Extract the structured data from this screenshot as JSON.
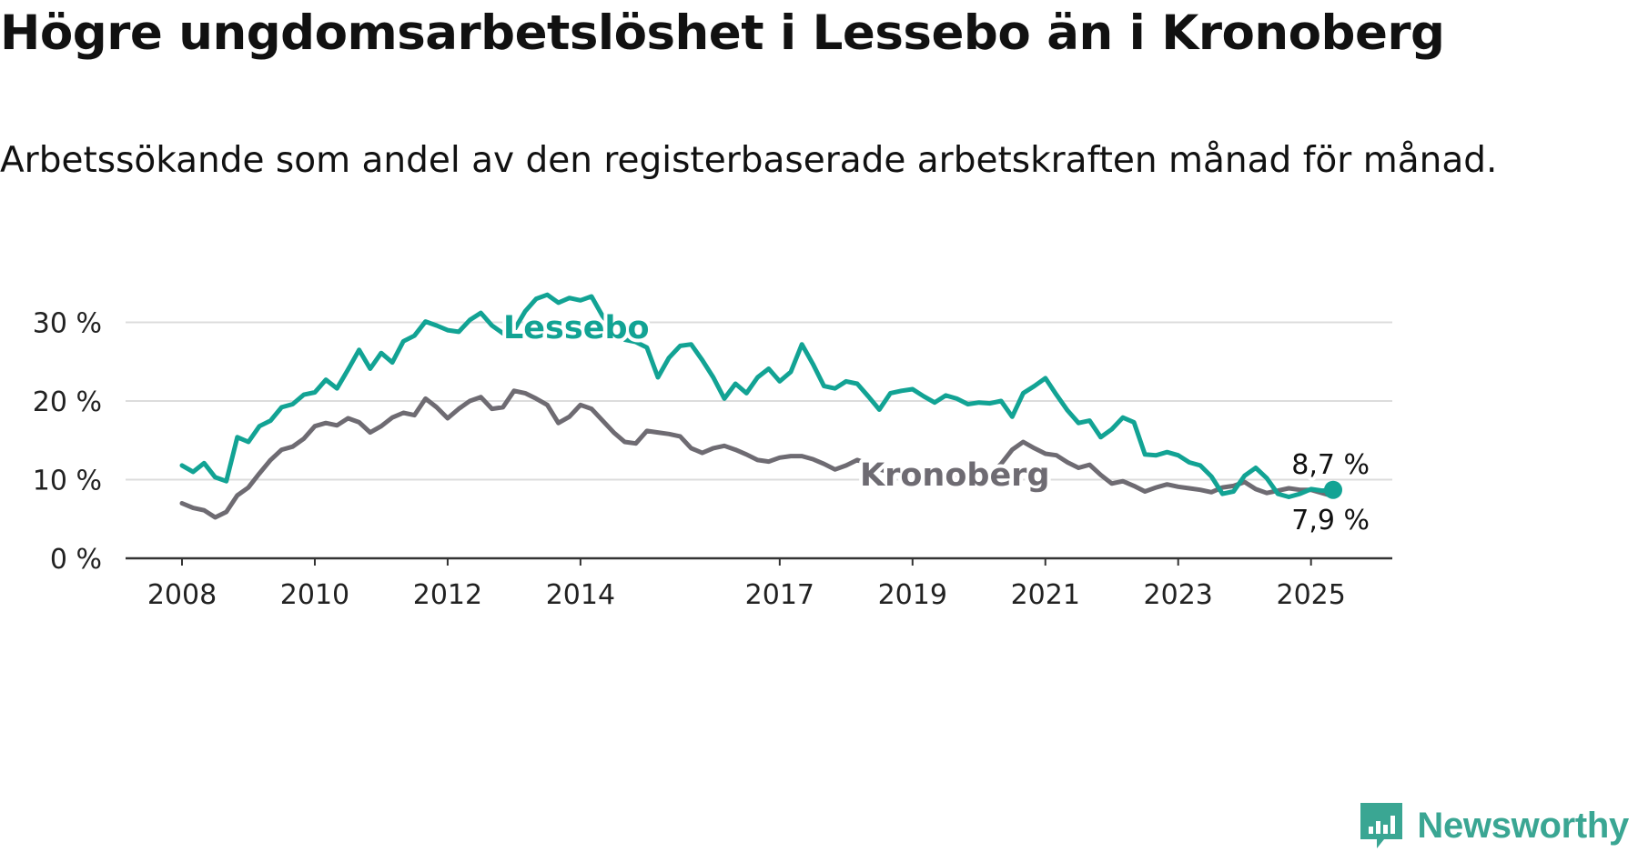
{
  "header": {
    "title": "Högre ungdomsarbetslöshet i Lessebo än i Kronoberg",
    "subtitle": "Arbetssökande som andel av den registerbaserade arbetskraften månad för månad."
  },
  "brand": {
    "name": "Newsworthy",
    "icon": "newsworthy-logo-icon",
    "color": "#3aa693"
  },
  "chart_data": {
    "type": "line",
    "title": "Högre ungdomsarbetslöshet i Lessebo än i Kronoberg",
    "subtitle": "Arbetssökande som andel av den registerbaserade arbetskraften månad för månad.",
    "xlabel": "",
    "ylabel": "",
    "x_ticks": [
      "2008",
      "2010",
      "2012",
      "2014",
      "2017",
      "2019",
      "2021",
      "2023",
      "2025"
    ],
    "y_ticks": [
      "0 %",
      "10 %",
      "20 %",
      "30 %"
    ],
    "ylim": [
      0,
      35
    ],
    "grid": true,
    "legend": "inline labels",
    "series": [
      {
        "name": "Lessebo",
        "color": "#12a394",
        "x": [
          "2008-01",
          "2008-03",
          "2008-05",
          "2008-07",
          "2008-09",
          "2008-11",
          "2009-01",
          "2009-03",
          "2009-05",
          "2009-07",
          "2009-09",
          "2009-11",
          "2010-01",
          "2010-03",
          "2010-05",
          "2010-07",
          "2010-09",
          "2010-11",
          "2011-01",
          "2011-03",
          "2011-05",
          "2011-07",
          "2011-09",
          "2011-11",
          "2012-01",
          "2012-03",
          "2012-05",
          "2012-07",
          "2012-09",
          "2012-11",
          "2013-01",
          "2013-03",
          "2013-05",
          "2013-07",
          "2013-09",
          "2013-11",
          "2014-01",
          "2014-03",
          "2014-05",
          "2014-07",
          "2014-09",
          "2014-11",
          "2015-01",
          "2015-03",
          "2015-05",
          "2015-07",
          "2015-09",
          "2015-11",
          "2016-01",
          "2016-03",
          "2016-05",
          "2016-07",
          "2016-09",
          "2016-11",
          "2017-01",
          "2017-03",
          "2017-05",
          "2017-07",
          "2017-09",
          "2017-11",
          "2018-01",
          "2018-03",
          "2018-05",
          "2018-07",
          "2018-09",
          "2018-11",
          "2019-01",
          "2019-03",
          "2019-05",
          "2019-07",
          "2019-09",
          "2019-11",
          "2020-01",
          "2020-03",
          "2020-05",
          "2020-07",
          "2020-09",
          "2020-11",
          "2021-01",
          "2021-03",
          "2021-05",
          "2021-07",
          "2021-09",
          "2021-11",
          "2022-01",
          "2022-03",
          "2022-05",
          "2022-07",
          "2022-09",
          "2022-11",
          "2023-01",
          "2023-03",
          "2023-05",
          "2023-07",
          "2023-09",
          "2023-11",
          "2024-01",
          "2024-03",
          "2024-05",
          "2024-07",
          "2024-09",
          "2024-11",
          "2025-01",
          "2025-03",
          "2025-05"
        ],
        "values": [
          11.8,
          11.0,
          12.1,
          10.3,
          9.8,
          15.4,
          14.8,
          16.8,
          17.5,
          19.2,
          19.6,
          20.8,
          21.1,
          22.7,
          21.6,
          24.0,
          26.5,
          24.1,
          26.1,
          24.9,
          27.6,
          28.3,
          30.1,
          29.6,
          29.0,
          28.8,
          30.3,
          31.2,
          29.6,
          28.6,
          29.0,
          31.4,
          33.0,
          33.5,
          32.5,
          33.1,
          32.8,
          33.3,
          30.8,
          29.0,
          27.8,
          27.5,
          26.8,
          23.0,
          25.5,
          27.0,
          27.2,
          25.2,
          23.0,
          20.3,
          22.2,
          21.0,
          23.0,
          24.1,
          22.5,
          23.7,
          27.2,
          24.7,
          21.9,
          21.6,
          22.5,
          22.2,
          20.6,
          18.9,
          21.0,
          21.3,
          21.5,
          20.6,
          19.8,
          20.7,
          20.3,
          19.6,
          19.8,
          19.7,
          20.0,
          18.0,
          21.0,
          21.9,
          22.9,
          20.8,
          18.8,
          17.2,
          17.5,
          15.4,
          16.4,
          17.9,
          17.3,
          13.2,
          13.1,
          13.5,
          13.1,
          12.2,
          11.8,
          10.4,
          8.2,
          8.5,
          10.5,
          11.5,
          10.2,
          8.2,
          7.8,
          8.2,
          8.8,
          8.6,
          8.7
        ]
      },
      {
        "name": "Kronoberg",
        "color": "#6e6b72",
        "x": [
          "2008-01",
          "2008-03",
          "2008-05",
          "2008-07",
          "2008-09",
          "2008-11",
          "2009-01",
          "2009-03",
          "2009-05",
          "2009-07",
          "2009-09",
          "2009-11",
          "2010-01",
          "2010-03",
          "2010-05",
          "2010-07",
          "2010-09",
          "2010-11",
          "2011-01",
          "2011-03",
          "2011-05",
          "2011-07",
          "2011-09",
          "2011-11",
          "2012-01",
          "2012-03",
          "2012-05",
          "2012-07",
          "2012-09",
          "2012-11",
          "2013-01",
          "2013-03",
          "2013-05",
          "2013-07",
          "2013-09",
          "2013-11",
          "2014-01",
          "2014-03",
          "2014-05",
          "2014-07",
          "2014-09",
          "2014-11",
          "2015-01",
          "2015-03",
          "2015-05",
          "2015-07",
          "2015-09",
          "2015-11",
          "2016-01",
          "2016-03",
          "2016-05",
          "2016-07",
          "2016-09",
          "2016-11",
          "2017-01",
          "2017-03",
          "2017-05",
          "2017-07",
          "2017-09",
          "2017-11",
          "2018-01",
          "2018-03",
          "2018-05",
          "2018-07",
          "2018-09",
          "2018-11",
          "2019-01",
          "2019-03",
          "2019-05",
          "2019-07",
          "2019-09",
          "2019-11",
          "2020-01",
          "2020-03",
          "2020-05",
          "2020-07",
          "2020-09",
          "2020-11",
          "2021-01",
          "2021-03",
          "2021-05",
          "2021-07",
          "2021-09",
          "2021-11",
          "2022-01",
          "2022-03",
          "2022-05",
          "2022-07",
          "2022-09",
          "2022-11",
          "2023-01",
          "2023-03",
          "2023-05",
          "2023-07",
          "2023-09",
          "2023-11",
          "2024-01",
          "2024-03",
          "2024-05",
          "2024-07",
          "2024-09",
          "2024-11",
          "2025-01",
          "2025-03",
          "2025-05"
        ],
        "values": [
          7.0,
          6.4,
          6.1,
          5.2,
          5.9,
          8.0,
          9.0,
          10.8,
          12.5,
          13.8,
          14.2,
          15.2,
          16.8,
          17.2,
          16.9,
          17.8,
          17.3,
          16.0,
          16.8,
          17.9,
          18.5,
          18.2,
          20.3,
          19.2,
          17.8,
          19.0,
          20.0,
          20.5,
          19.0,
          19.2,
          21.3,
          21.0,
          20.3,
          19.5,
          17.2,
          18.0,
          19.5,
          19.0,
          17.5,
          16.0,
          14.8,
          14.6,
          16.2,
          16.0,
          15.8,
          15.5,
          14.0,
          13.4,
          14.0,
          14.3,
          13.8,
          13.2,
          12.5,
          12.3,
          12.8,
          13.0,
          13.0,
          12.6,
          12.0,
          11.3,
          11.8,
          12.5,
          12.0,
          11.3,
          11.0,
          10.8,
          10.6,
          10.5,
          10.5,
          10.5,
          10.6,
          10.3,
          10.3,
          10.6,
          12.0,
          13.8,
          14.8,
          14.0,
          13.3,
          13.1,
          12.2,
          11.5,
          11.9,
          10.6,
          9.5,
          9.8,
          9.2,
          8.5,
          9.0,
          9.4,
          9.1,
          8.9,
          8.7,
          8.4,
          9.0,
          9.2,
          9.7,
          8.8,
          8.3,
          8.6,
          8.9,
          8.7,
          8.7,
          8.3,
          7.9
        ]
      }
    ],
    "end_labels": {
      "Lessebo": "8,7 %",
      "Kronoberg": "7,9 %"
    }
  }
}
